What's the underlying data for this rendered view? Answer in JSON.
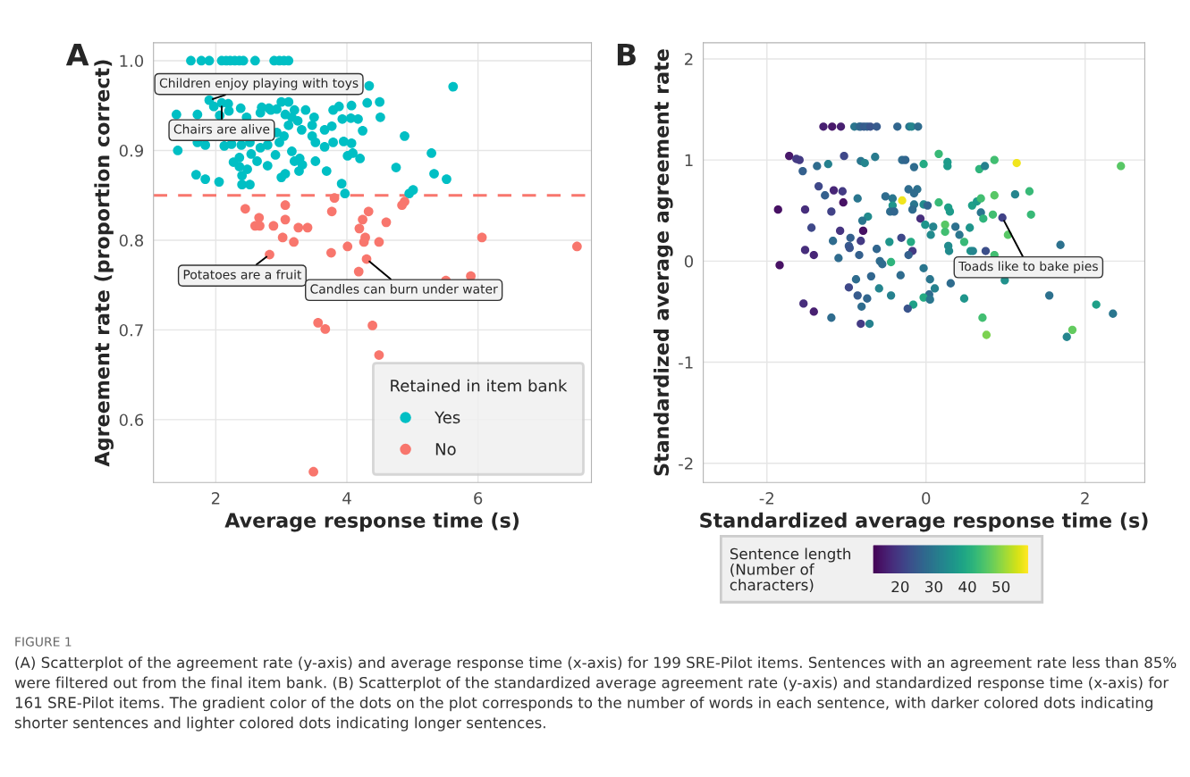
{
  "chart_data": [
    {
      "type": "scatter",
      "title": "A",
      "xlabel": "Average response time (s)",
      "ylabel": "Agreement rate (proportion correct)",
      "legend_title": "Retained in item bank",
      "legend": "bottom right",
      "grid": true,
      "xlim": [
        1.05,
        7.73
      ],
      "ylim": [
        0.53,
        1.02
      ],
      "xticks": [
        2,
        4,
        6
      ],
      "yticks": [
        0.6,
        0.7,
        0.8,
        0.9,
        {
          "value": 1.0,
          "label": "1.0"
        }
      ],
      "ref_lines": [
        {
          "axis": "y",
          "value": 0.85,
          "color": "#f8766d",
          "line_style": "dashed"
        }
      ],
      "series": [
        {
          "name": "Yes",
          "color": "#00bfc4",
          "x": [
            1.62,
            1.78,
            1.9,
            2.09,
            2.16,
            2.22,
            2.29,
            2.36,
            2.42,
            2.6,
            2.89,
            2.97,
            3.04,
            3.11,
            4.34,
            5.62,
            1.9,
            1.97,
            2.09,
            2.19,
            2.2,
            2.38,
            2.06,
            1.4,
            1.72,
            1.42,
            1.84,
            2.13,
            2.39,
            1.72,
            2.7,
            2.81,
            2.93,
            3.0,
            3.11,
            3.06,
            3.2,
            3.37,
            3.25,
            3.16,
            3.31,
            3.47,
            3.5,
            3.47,
            3.52,
            3.66,
            3.79,
            3.66,
            3.77,
            3.79,
            3.88,
            3.93,
            4.07,
            4.06,
            4.17,
            4.24,
            3.95,
            4.07,
            4.01,
            4.09,
            4.2,
            4.31,
            4.5,
            4.51,
            4.88,
            4.75,
            5.29,
            5.33,
            5.52,
            5.01,
            4.95,
            3.92,
            3.97,
            3.69,
            3.52,
            3.2,
            3.28,
            3.16,
            3.32,
            3.27,
            3.06,
            3.0,
            2.91,
            2.79,
            2.68,
            2.54,
            2.63,
            2.79,
            2.36,
            2.27,
            2.36,
            2.48,
            2.4,
            2.4,
            2.52,
            2.05,
            1.84,
            1.7,
            2.97,
            3.04,
            2.93,
            2.84,
            2.68,
            2.47,
            2.52,
            2.24,
            3.11
          ],
          "values": [
            1.0,
            1.0,
            1.0,
            1.0,
            1.0,
            1.0,
            1.0,
            1.0,
            1.0,
            1.0,
            1.0,
            1.0,
            1.0,
            1.0,
            0.972,
            0.971,
            0.956,
            0.949,
            0.953,
            0.952,
            0.944,
            0.947,
            0.939,
            0.94,
            0.94,
            0.9,
            0.906,
            0.905,
            0.906,
            0.909,
            0.948,
            0.947,
            0.946,
            0.954,
            0.954,
            0.94,
            0.945,
            0.945,
            0.933,
            0.937,
            0.923,
            0.928,
            0.937,
            0.916,
            0.909,
            0.904,
            0.909,
            0.923,
            0.927,
            0.945,
            0.949,
            0.935,
            0.95,
            0.936,
            0.935,
            0.922,
            0.91,
            0.908,
            0.894,
            0.897,
            0.891,
            0.953,
            0.954,
            0.937,
            0.916,
            0.881,
            0.897,
            0.874,
            0.868,
            0.856,
            0.852,
            0.863,
            0.852,
            0.877,
            0.888,
            0.888,
            0.891,
            0.899,
            0.884,
            0.877,
            0.874,
            0.87,
            0.895,
            0.906,
            0.903,
            0.896,
            0.888,
            0.883,
            0.892,
            0.887,
            0.882,
            0.879,
            0.872,
            0.862,
            0.862,
            0.865,
            0.868,
            0.873,
            0.909,
            0.916,
            0.92,
            0.945,
            0.942,
            0.937,
            0.909,
            0.907,
            0.928
          ]
        },
        {
          "name": "No",
          "color": "#f8766d",
          "x": [
            2.45,
            2.66,
            2.6,
            2.67,
            2.88,
            3.06,
            3.06,
            3.26,
            3.4,
            3.02,
            3.19,
            2.82,
            3.81,
            3.77,
            3.76,
            4.01,
            4.33,
            4.24,
            4.19,
            4.28,
            4.26,
            4.49,
            4.6,
            4.3,
            4.18,
            4.84,
            4.88,
            6.06,
            7.51,
            5.51,
            5.89,
            3.56,
            3.67,
            4.39,
            4.49,
            3.49
          ],
          "values": [
            0.835,
            0.825,
            0.816,
            0.816,
            0.816,
            0.839,
            0.823,
            0.814,
            0.814,
            0.803,
            0.798,
            0.784,
            0.847,
            0.832,
            0.786,
            0.793,
            0.832,
            0.823,
            0.813,
            0.803,
            0.798,
            0.798,
            0.82,
            0.779,
            0.765,
            0.839,
            0.843,
            0.803,
            0.793,
            0.755,
            0.76,
            0.708,
            0.701,
            0.705,
            0.672,
            0.542
          ]
        }
      ],
      "annotations": [
        {
          "text": "Children enjoy playing with toys",
          "x": 1.9,
          "y": 0.956
        },
        {
          "text": "Chairs are alive",
          "x": 2.09,
          "y": 0.953
        },
        {
          "text": "Potatoes are a fruit",
          "x": 2.82,
          "y": 0.784
        },
        {
          "text": "Candles can burn under water",
          "x": 4.3,
          "y": 0.779
        },
        "FIGURE 1",
        "(A) Scatterplot of the agreement rate (y-axis) and average response time (x-axis) for 199 SRE-Pilot items. Sentences with an agreement rate less than 85% were filtered out from the final item bank. (B) Scatterplot of the standardized average agreement rate (y-axis) and standardized response time (x-axis) for 161 SRE-Pilot items. The gradient color of the dots on the plot corresponds to the number of words in each sentence, with darker colored dots indicating shorter sentences and lighter colored dots indicating longer sentences."
      ]
    },
    {
      "type": "scatter",
      "title": "B",
      "xlabel": "Standardized average response time (s)",
      "ylabel": "Standardized average agreement rate",
      "clabel": "Sentence length\n(Number of\ncharacters)",
      "grid": true,
      "xlim": [
        -2.8,
        2.75
      ],
      "ylim": [
        -2.19,
        2.16
      ],
      "xticks": [
        -2,
        0,
        2
      ],
      "yticks": [
        -2,
        -1,
        0,
        1,
        2
      ],
      "clim": [
        12,
        58
      ],
      "cticks": [
        20,
        30,
        40,
        50
      ],
      "series": [
        {
          "x": [
            -1.29,
            -1.18,
            -1.07,
            -0.9,
            -0.84,
            -0.82,
            -0.78,
            -0.74,
            -0.7,
            -0.62,
            -0.36,
            -0.21,
            -0.18,
            -0.1,
            -1.72,
            -1.63,
            -1.59,
            -1.55,
            -1.37,
            -1.23,
            -1.03,
            -0.82,
            -0.77,
            -0.64,
            -0.3,
            -0.26,
            -0.15,
            -0.03,
            0.16,
            0.27,
            0.27,
            0.67,
            0.74,
            0.86,
            1.14,
            2.45,
            -1.35,
            -1.27,
            -1.16,
            -1.05,
            -1.04,
            -0.86,
            -0.51,
            -0.42,
            -0.3,
            -0.42,
            -0.45,
            -0.4,
            -0.22,
            -0.11,
            -0.15,
            -0.15,
            -0.03,
            0.02,
            -0.17,
            0.16,
            0.28,
            0.3,
            0.58,
            0.64,
            0.69,
            0.86,
            1.12,
            1.3,
            1.32,
            0.69,
            0.72,
            0.84,
            0.96,
            1.03,
            -1.86,
            -1.52,
            -1.19,
            -0.07,
            -0.73,
            -0.8,
            -1.44,
            -1.08,
            -0.79,
            -0.95,
            -0.82,
            -1.17,
            -0.97,
            -0.96,
            -1.52,
            -1.41,
            -1.1,
            -0.84,
            -0.62,
            -0.46,
            -0.31,
            -0.19,
            -0.17,
            -0.22,
            -0.01,
            0.09,
            0.24,
            0.24,
            0.06,
            0.37,
            0.42,
            0.48,
            0.55,
            0.28,
            0.29,
            0.56,
            0.59,
            0.75,
            0.86,
            -1.84,
            -0.58,
            -0.55,
            -0.44,
            -0.03,
            -0.32,
            -0.69,
            -0.88,
            0.05,
            0.31,
            0.11,
            -0.59,
            -0.97,
            -0.44,
            -0.86,
            -0.74,
            0.04,
            -0.03,
            0.05,
            0.48,
            0.99,
            1.69,
            1.55,
            2.14,
            2.35,
            1.84,
            1.77,
            0.71,
            0.76,
            -0.16,
            -0.23,
            -0.81,
            -1.54,
            -1.41,
            -1.19,
            -0.82,
            -0.71
          ],
          "values": [
            1.33,
            1.33,
            1.33,
            1.33,
            1.33,
            1.33,
            1.33,
            1.33,
            1.33,
            1.33,
            1.33,
            1.33,
            1.33,
            1.33,
            1.04,
            1.01,
            1.0,
            0.89,
            0.94,
            0.96,
            1.04,
            0.99,
            0.97,
            1.03,
            1.0,
            1.0,
            0.93,
            0.96,
            1.06,
            0.98,
            0.94,
            0.91,
            0.94,
            1.0,
            0.97,
            0.94,
            0.74,
            0.65,
            0.7,
            0.69,
            0.58,
            0.62,
            0.64,
            0.62,
            0.6,
            0.55,
            0.49,
            0.49,
            0.71,
            0.71,
            0.67,
            0.56,
            0.56,
            0.55,
            0.51,
            0.58,
            0.53,
            0.49,
            0.55,
            0.59,
            0.62,
            0.65,
            0.66,
            0.69,
            0.46,
            0.48,
            0.42,
            0.46,
            0.43,
            0.26,
            0.51,
            0.51,
            0.49,
            0.42,
            0.44,
            0.4,
            0.33,
            0.3,
            0.3,
            0.23,
            0.2,
            0.2,
            0.15,
            0.13,
            0.11,
            0.06,
            0.03,
            0.06,
            0.12,
            0.19,
            0.23,
            0.19,
            0.1,
            0.06,
            0.36,
            0.34,
            0.36,
            0.29,
            0.26,
            0.34,
            0.26,
            0.19,
            0.33,
            0.15,
            0.1,
            0.1,
            0.1,
            0.1,
            0.06,
            -0.04,
            0.0,
            -0.03,
            -0.01,
            -0.07,
            -0.14,
            -0.15,
            -0.18,
            -0.18,
            -0.22,
            -0.27,
            -0.27,
            -0.26,
            -0.34,
            -0.34,
            -0.37,
            -0.33,
            -0.36,
            -0.38,
            -0.37,
            -0.19,
            0.16,
            -0.34,
            -0.43,
            -0.52,
            -0.68,
            -0.75,
            -0.56,
            -0.73,
            -0.43,
            -0.47,
            -0.45,
            -0.42,
            -0.5,
            -0.56,
            -0.62,
            -0.62
          ],
          "cvalues": [
            16,
            15,
            16,
            30,
            28,
            27,
            25,
            26,
            24,
            25,
            27,
            30,
            33,
            28,
            15,
            20,
            20,
            26,
            28,
            32,
            22,
            30,
            33,
            31,
            28,
            27,
            28,
            40,
            43,
            37,
            37,
            42,
            32,
            44,
            57,
            46,
            22,
            26,
            17,
            20,
            14,
            30,
            28,
            30,
            57,
            36,
            28,
            27,
            28,
            29,
            28,
            30,
            34,
            27,
            28,
            43,
            38,
            37,
            38,
            37,
            44,
            46,
            33,
            43,
            43,
            30,
            42,
            44,
            21,
            46,
            14,
            18,
            21,
            18,
            34,
            30,
            22,
            19,
            14,
            26,
            20,
            28,
            25,
            24,
            18,
            17,
            28,
            26,
            27,
            36,
            22,
            40,
            20,
            26,
            36,
            33,
            46,
            44,
            34,
            29,
            30,
            43,
            36,
            34,
            34,
            36,
            33,
            23,
            44,
            14,
            28,
            28,
            42,
            30,
            28,
            27,
            28,
            30,
            28,
            32,
            33,
            22,
            32,
            25,
            27,
            28,
            40,
            30,
            36,
            35,
            29,
            29,
            38,
            30,
            47,
            33,
            44,
            49,
            38,
            24,
            28,
            18,
            16,
            28,
            20,
            32
          ]
        }
      ],
      "annotations": [
        {
          "text": "Toads like to bake pies",
          "x": 0.96,
          "y": 0.43
        }
      ]
    }
  ]
}
